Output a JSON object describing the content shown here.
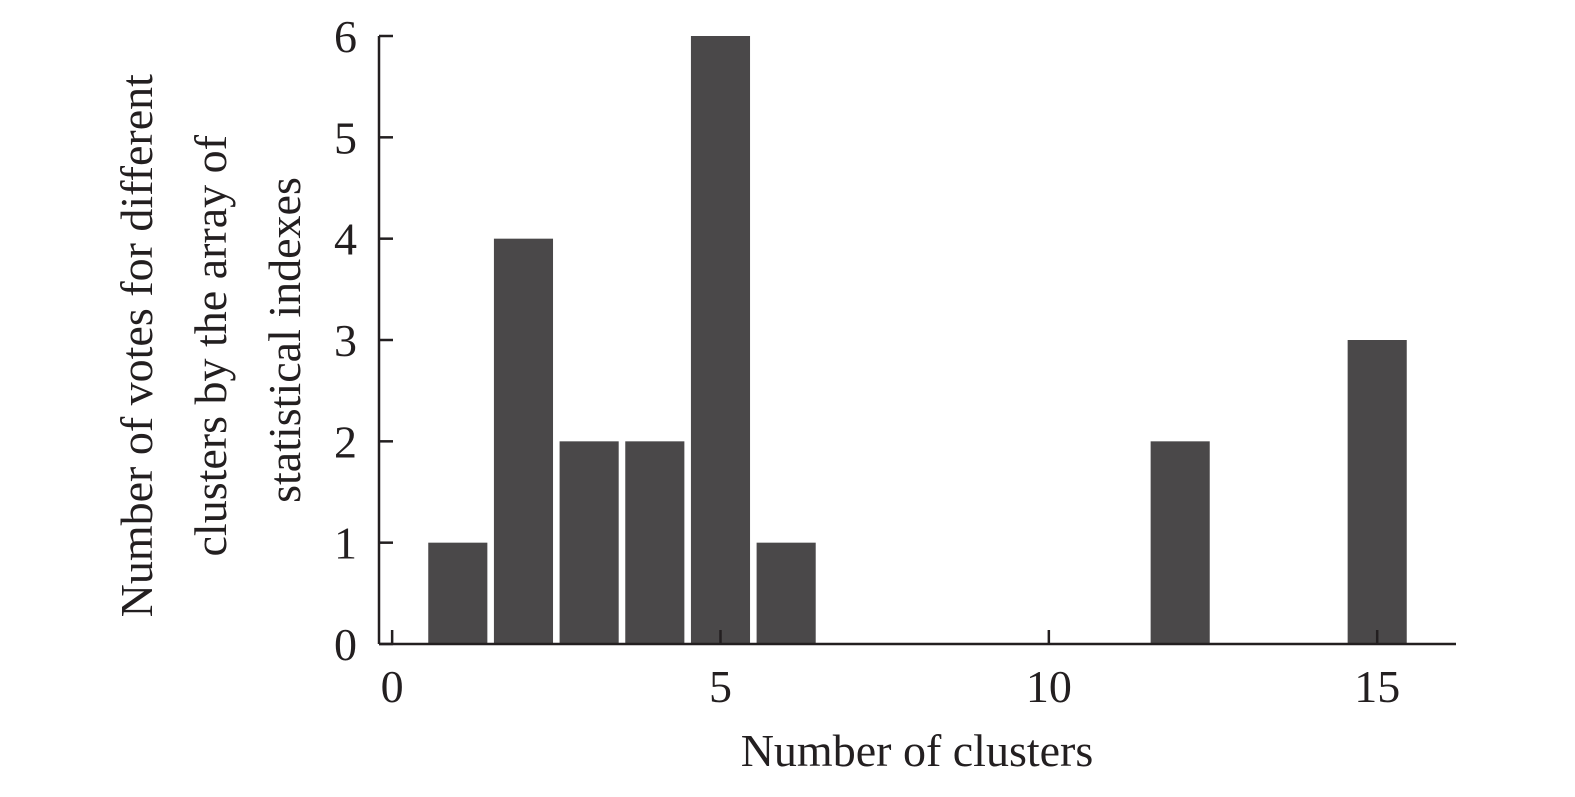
{
  "chart_data": {
    "type": "bar",
    "xlabel": "Number of clusters",
    "ylabel_lines": [
      "Number of votes for different",
      "clusters by the array of",
      "statistical indexes"
    ],
    "x": [
      1,
      2,
      3,
      4,
      5,
      6,
      12,
      15
    ],
    "values": [
      1,
      4,
      2,
      2,
      6,
      1,
      2,
      3
    ],
    "xlim": [
      -0.2,
      16.2
    ],
    "ylim": [
      0,
      6
    ],
    "xticks": [
      0,
      5,
      10,
      15
    ],
    "yticks": [
      0,
      1,
      2,
      3,
      4,
      5,
      6
    ],
    "bar_width": 0.9,
    "bar_color": "#4a4849",
    "axis_color": "#231f20",
    "grid": false,
    "legend": "none"
  }
}
